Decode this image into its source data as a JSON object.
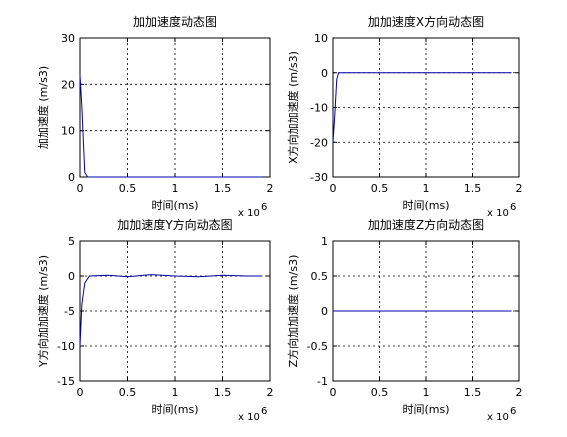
{
  "chart_data": [
    {
      "type": "line",
      "title": "加加速度动态图",
      "xlabel": "时间(ms)",
      "ylabel": "加加速度 (m/s3)",
      "x_exponent_label": "x 10",
      "x_exponent_power": "6",
      "xlim": [
        0,
        2
      ],
      "ylim": [
        0,
        30
      ],
      "xticks": [
        0,
        0.5,
        1,
        1.5,
        2
      ],
      "xtick_labels": [
        "0",
        "0.5",
        "1",
        "1.5",
        "2"
      ],
      "yticks": [
        0,
        10,
        20,
        30
      ],
      "ytick_labels": [
        "0",
        "10",
        "20",
        "30"
      ],
      "grid": true,
      "line_color": "#0000aa",
      "series": [
        {
          "x": [
            0,
            0.02,
            0.05,
            0.08,
            1.0,
            1.92
          ],
          "y": [
            22,
            15,
            1,
            0,
            0,
            0
          ]
        }
      ]
    },
    {
      "type": "line",
      "title": "加加速度X方向动态图",
      "xlabel": "时间(ms)",
      "ylabel": "X方向加加速度 (m/s3)",
      "x_exponent_label": "x 10",
      "x_exponent_power": "6",
      "xlim": [
        0,
        2
      ],
      "ylim": [
        -30,
        10
      ],
      "xticks": [
        0,
        0.5,
        1,
        1.5,
        2
      ],
      "xtick_labels": [
        "0",
        "0.5",
        "1",
        "1.5",
        "2"
      ],
      "yticks": [
        -30,
        -20,
        -10,
        0,
        10
      ],
      "ytick_labels": [
        "-30",
        "-20",
        "-10",
        "0",
        "10"
      ],
      "grid": true,
      "line_color": "#0000aa",
      "series": [
        {
          "x": [
            0,
            0.02,
            0.04,
            0.06,
            0.08,
            1.0,
            1.92
          ],
          "y": [
            -20,
            -12,
            -2,
            0,
            0,
            0,
            0
          ]
        }
      ]
    },
    {
      "type": "line",
      "title": "加加速度Y方向动态图",
      "xlabel": "时间(ms)",
      "ylabel": "Y方向加加速度 (m/s3)",
      "x_exponent_label": "x 10",
      "x_exponent_power": "6",
      "xlim": [
        0,
        2
      ],
      "ylim": [
        -15,
        5
      ],
      "xticks": [
        0,
        0.5,
        1,
        1.5,
        2
      ],
      "xtick_labels": [
        "0",
        "0.5",
        "1",
        "1.5",
        "2"
      ],
      "yticks": [
        -15,
        -10,
        -5,
        0,
        5
      ],
      "ytick_labels": [
        "-15",
        "-10",
        "-5",
        "0",
        "5"
      ],
      "grid": true,
      "line_color": "#0000aa",
      "series": [
        {
          "x": [
            0,
            0.02,
            0.05,
            0.1,
            0.3,
            0.5,
            0.75,
            1.0,
            1.25,
            1.5,
            1.75,
            1.92
          ],
          "y": [
            -10,
            -4,
            -1,
            0,
            0.1,
            -0.1,
            0.2,
            0,
            -0.1,
            0.1,
            0,
            0
          ]
        }
      ]
    },
    {
      "type": "line",
      "title": "加加速度Z方向动态图",
      "xlabel": "时间(ms)",
      "ylabel": "Z方向加加速度 (m/s3)",
      "x_exponent_label": "x 10",
      "x_exponent_power": "6",
      "xlim": [
        0,
        2
      ],
      "ylim": [
        -1,
        1
      ],
      "xticks": [
        0,
        0.5,
        1,
        1.5,
        2
      ],
      "xtick_labels": [
        "0",
        "0.5",
        "1",
        "1.5",
        "2"
      ],
      "yticks": [
        -1,
        -0.5,
        0,
        0.5,
        1
      ],
      "ytick_labels": [
        "-1",
        "-0.5",
        "0",
        "0.5",
        "1"
      ],
      "grid": true,
      "line_color": "#0000aa",
      "series": [
        {
          "x": [
            0,
            1.92
          ],
          "y": [
            0,
            0
          ]
        }
      ]
    }
  ]
}
